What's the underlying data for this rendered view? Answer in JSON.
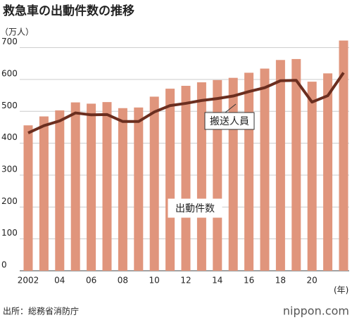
{
  "chart_data": {
    "type": "bar_line",
    "title": "救急車の出動件数の推移",
    "y_unit": "（万人）",
    "x_unit": "(年)",
    "source": "出所：総務省消防庁",
    "brand": "nippon.com",
    "categories": [
      "2002",
      null,
      "04",
      null,
      "06",
      null,
      "08",
      null,
      "10",
      null,
      "12",
      null,
      "14",
      null,
      "16",
      null,
      "18",
      null,
      "20",
      null,
      null
    ],
    "series": [
      {
        "name": "出動件数",
        "color": "#e0957c",
        "values": [
          456,
          484,
          503,
          528,
          524,
          529,
          510,
          512,
          546,
          571,
          580,
          591,
          598,
          605,
          621,
          634,
          661,
          664,
          593,
          619,
          722
        ]
      },
      {
        "name": "搬送人員",
        "color": "#6b2e1f",
        "values": [
          432,
          455,
          470,
          495,
          489,
          490,
          468,
          468,
          498,
          518,
          525,
          534,
          540,
          548,
          562,
          574,
          596,
          597,
          529,
          549,
          621
        ]
      }
    ],
    "ylim": [
      0,
      730
    ],
    "yticks": [
      0,
      100,
      200,
      300,
      400,
      500,
      600,
      700
    ],
    "grid": true
  }
}
